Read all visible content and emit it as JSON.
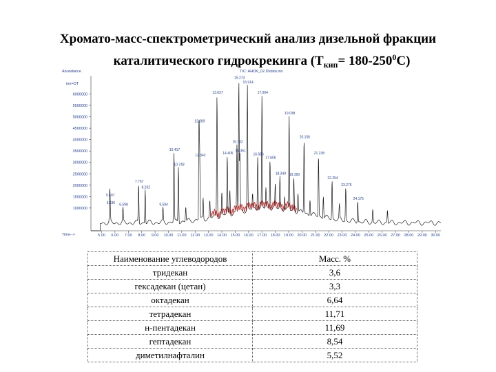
{
  "title": {
    "line1": "Хромато-масс-спектрометрический анализ дизельной фракции",
    "line2_prefix": "каталитического гидрокрекинга (T",
    "line2_sub": "кип",
    "line2_mid": "= 180-250",
    "line2_sup": "0",
    "line2_suffix": "С)"
  },
  "chart_data": {
    "type": "line",
    "header_left": "Abundance",
    "header_center": "TIC: AHDK_02.D\\data.ms",
    "xlabel": "Time-->",
    "ylabel": "",
    "series_label": "ion=OT",
    "xlim": [
      4.2,
      30.4
    ],
    "ylim": [
      0,
      6800000
    ],
    "x_ticks": [
      "5.00",
      "6.00",
      "7.00",
      "8.00",
      "9.00",
      "10.00",
      "11.00",
      "12.00",
      "13.00",
      "14.00",
      "15.00",
      "16.00",
      "17.00",
      "18.00",
      "19.00",
      "20.00",
      "21.00",
      "22.00",
      "23.00",
      "24.00",
      "25.00",
      "26.00",
      "27.00",
      "28.00",
      "29.00",
      "30.00"
    ],
    "y_ticks": [
      "1000000",
      "1500000",
      "2000000",
      "2500000",
      "3000000",
      "3500000",
      "4000000",
      "4500000",
      "5000000",
      "5500000",
      "6000000"
    ],
    "peaks": [
      {
        "label": "5.607",
        "x": 5.607,
        "y": 1450000
      },
      {
        "label": "5.636",
        "x": 5.636,
        "y": 1120000
      },
      {
        "label": "6.598",
        "x": 6.598,
        "y": 1050000
      },
      {
        "label": "7.767",
        "x": 7.767,
        "y": 2050000
      },
      {
        "label": "8.262",
        "x": 8.262,
        "y": 1800000
      },
      {
        "label": "9.594",
        "x": 9.594,
        "y": 1050000
      },
      {
        "label": "10.417",
        "x": 10.417,
        "y": 3450000
      },
      {
        "label": "10.748",
        "x": 10.748,
        "y": 2800000
      },
      {
        "label": "12.289",
        "x": 12.289,
        "y": 4700000
      },
      {
        "label": "12.342",
        "x": 12.342,
        "y": 3200000
      },
      {
        "label": "13.637",
        "x": 13.637,
        "y": 5950000
      },
      {
        "label": "14.405",
        "x": 14.405,
        "y": 3300000
      },
      {
        "label": "15.273",
        "x": 15.273,
        "y": 6600000
      },
      {
        "label": "15.351",
        "x": 15.351,
        "y": 3400000
      },
      {
        "label": "15.132",
        "x": 15.132,
        "y": 3800000
      },
      {
        "label": "15.914",
        "x": 15.914,
        "y": 6400000
      },
      {
        "label": "16.686",
        "x": 16.686,
        "y": 3250000
      },
      {
        "label": "17.004",
        "x": 17.004,
        "y": 5950000
      },
      {
        "label": "17.606",
        "x": 17.606,
        "y": 3100000
      },
      {
        "label": "18.349",
        "x": 18.349,
        "y": 2400000
      },
      {
        "label": "19.038",
        "x": 19.038,
        "y": 5050000
      },
      {
        "label": "19.390",
        "x": 19.39,
        "y": 2350000
      },
      {
        "label": "20.156",
        "x": 20.156,
        "y": 4000000
      },
      {
        "label": "21.238",
        "x": 21.238,
        "y": 3300000
      },
      {
        "label": "22.254",
        "x": 22.254,
        "y": 2200000
      },
      {
        "label": "23.276",
        "x": 23.276,
        "y": 1900000
      },
      {
        "label": "24.175",
        "x": 24.175,
        "y": 1300000
      }
    ],
    "minor_peaks": [
      {
        "x": 11.3,
        "y": 1050000
      },
      {
        "x": 12.6,
        "y": 1450000
      },
      {
        "x": 13.1,
        "y": 1350000
      },
      {
        "x": 14.0,
        "y": 1700000
      },
      {
        "x": 14.6,
        "y": 1800000
      },
      {
        "x": 16.3,
        "y": 1650000
      },
      {
        "x": 17.3,
        "y": 1900000
      },
      {
        "x": 18.0,
        "y": 2100000
      },
      {
        "x": 18.7,
        "y": 1500000
      },
      {
        "x": 19.7,
        "y": 1650000
      },
      {
        "x": 20.6,
        "y": 1350000
      },
      {
        "x": 21.6,
        "y": 1500000
      },
      {
        "x": 22.8,
        "y": 1200000
      },
      {
        "x": 25.3,
        "y": 950000
      },
      {
        "x": 26.4,
        "y": 900000
      }
    ],
    "colors": {
      "trace": "#1a1a1a",
      "label": "#1f3f9e",
      "highlight": "#d42222"
    }
  },
  "table": {
    "header": [
      "Наименование углеводородов",
      "Масс. %"
    ],
    "rows": [
      [
        "тридекан",
        "3,6"
      ],
      [
        "гексадекан (цетан)",
        "3,3"
      ],
      [
        "октадекан",
        "6,64"
      ],
      [
        "тетрадекан",
        "11,71"
      ],
      [
        "н-пентадекан",
        "11,69"
      ],
      [
        "гептадекан",
        "8,54"
      ],
      [
        "диметилнафталин",
        "5,52"
      ]
    ]
  }
}
